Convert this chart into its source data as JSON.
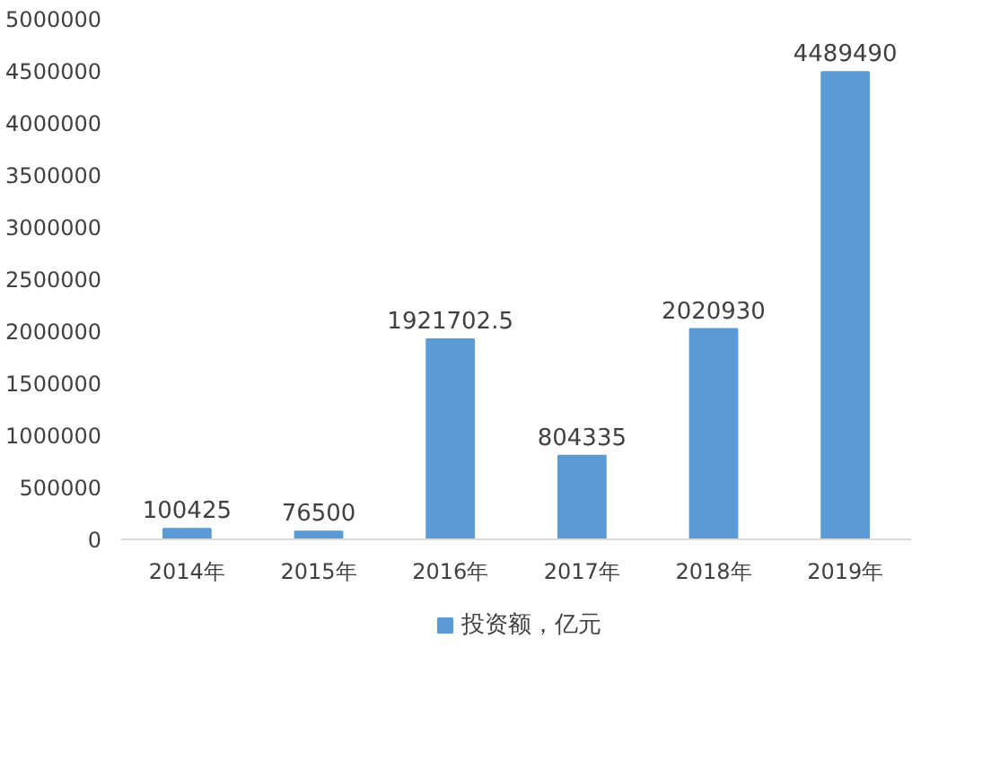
{
  "chart_data": {
    "type": "bar",
    "categories": [
      "2014年",
      "2015年",
      "2016年",
      "2017年",
      "2018年",
      "2019年"
    ],
    "series": [
      {
        "name": "投资额，亿元",
        "color": "#5b9bd5",
        "values": [
          100425,
          76500,
          1921702.5,
          804335,
          2020930,
          4489490
        ]
      }
    ],
    "ylim": [
      0,
      5000000
    ],
    "yticks": [
      0,
      500000,
      1000000,
      1500000,
      2000000,
      2500000,
      3000000,
      3500000,
      4000000,
      4500000,
      5000000
    ],
    "data_labels": true,
    "grid": false,
    "legend": "bottom"
  }
}
